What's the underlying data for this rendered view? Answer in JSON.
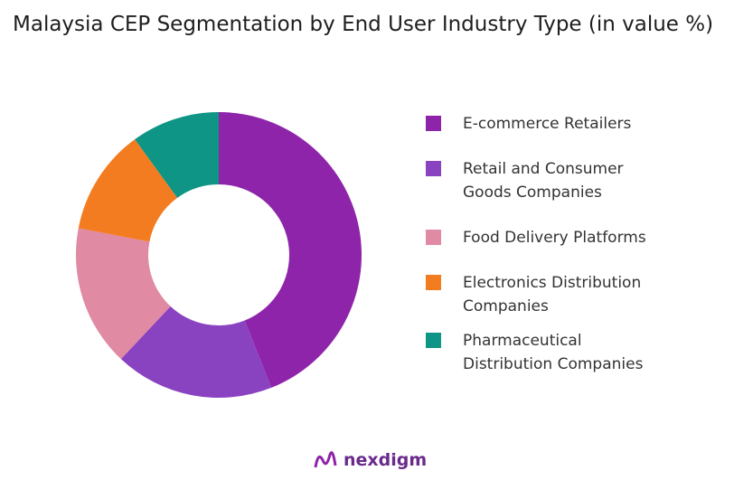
{
  "chart_data": {
    "type": "pie",
    "donut": true,
    "title": "Malaysia CEP Segmentation by End User Industry Type (in value %)",
    "categories": [
      "E-commerce Retailers",
      "Retail and Consumer Goods Companies",
      "Food Delivery Platforms",
      "Electronics Distribution Companies",
      "Pharmaceutical Distribution Companies"
    ],
    "legend_lines": [
      [
        "E-commerce Retailers"
      ],
      [
        "Retail and Consumer",
        "Goods Companies"
      ],
      [
        "Food Delivery Platforms"
      ],
      [
        "Electronics Distribution",
        "Companies"
      ],
      [
        "Pharmaceutical",
        "Distribution Companies"
      ]
    ],
    "values": [
      44,
      18,
      16,
      12,
      10
    ],
    "colors": [
      "#8E24AA",
      "#8A43C0",
      "#E08AA4",
      "#F47C20",
      "#0F9585"
    ],
    "legend_placement": "right"
  },
  "brand": {
    "name": "nexdigm"
  }
}
